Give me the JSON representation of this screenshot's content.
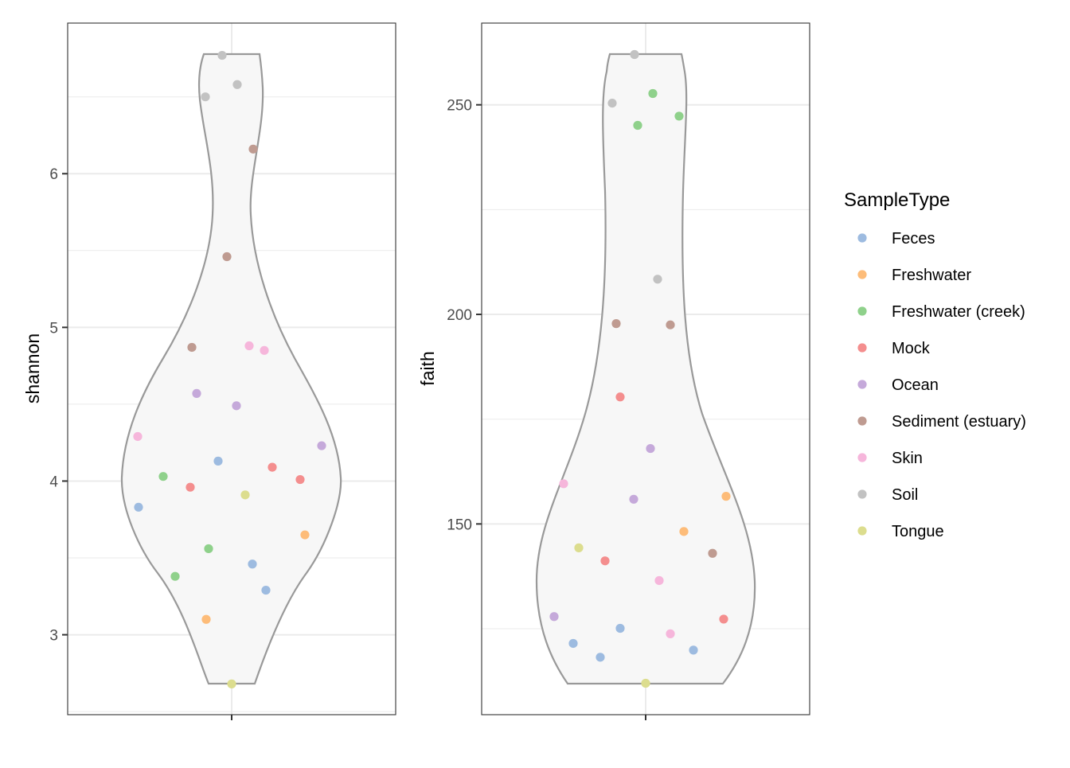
{
  "legend": {
    "title": "SampleType",
    "items": [
      {
        "label": "Feces",
        "color": "#9dbbe0"
      },
      {
        "label": "Freshwater",
        "color": "#fdbc79"
      },
      {
        "label": "Freshwater (creek)",
        "color": "#8fd18b"
      },
      {
        "label": "Mock",
        "color": "#f48e8e"
      },
      {
        "label": "Ocean",
        "color": "#c5a9da"
      },
      {
        "label": "Sediment (estuary)",
        "color": "#bf9b91"
      },
      {
        "label": "Skin",
        "color": "#f6b6db"
      },
      {
        "label": "Soil",
        "color": "#c2c2c2"
      },
      {
        "label": "Tongue",
        "color": "#dcdd8e"
      }
    ]
  },
  "chart_data": [
    {
      "type": "violin",
      "ylabel": "shannon",
      "xlabel": "",
      "ylim": [
        2.48,
        6.98
      ],
      "yticks": [
        3,
        4,
        5,
        6
      ],
      "grid": true,
      "legend_position": "right",
      "points": [
        {
          "type": "Soil",
          "y": 6.77
        },
        {
          "type": "Soil",
          "y": 6.58
        },
        {
          "type": "Soil",
          "y": 6.5
        },
        {
          "type": "Sediment (estuary)",
          "y": 6.16
        },
        {
          "type": "Sediment (estuary)",
          "y": 5.46
        },
        {
          "type": "Sediment (estuary)",
          "y": 4.87
        },
        {
          "type": "Skin",
          "y": 4.88
        },
        {
          "type": "Skin",
          "y": 4.85
        },
        {
          "type": "Ocean",
          "y": 4.57
        },
        {
          "type": "Ocean",
          "y": 4.49
        },
        {
          "type": "Skin",
          "y": 4.29
        },
        {
          "type": "Ocean",
          "y": 4.23
        },
        {
          "type": "Feces",
          "y": 4.13
        },
        {
          "type": "Mock",
          "y": 4.09
        },
        {
          "type": "Freshwater (creek)",
          "y": 4.03
        },
        {
          "type": "Mock",
          "y": 4.01
        },
        {
          "type": "Mock",
          "y": 3.96
        },
        {
          "type": "Tongue",
          "y": 3.91
        },
        {
          "type": "Feces",
          "y": 3.83
        },
        {
          "type": "Freshwater",
          "y": 3.65
        },
        {
          "type": "Freshwater (creek)",
          "y": 3.56
        },
        {
          "type": "Feces",
          "y": 3.46
        },
        {
          "type": "Freshwater (creek)",
          "y": 3.38
        },
        {
          "type": "Feces",
          "y": 3.29
        },
        {
          "type": "Freshwater",
          "y": 3.1
        },
        {
          "type": "Tongue",
          "y": 2.68
        }
      ]
    },
    {
      "type": "violin",
      "ylabel": "faith",
      "xlabel": "",
      "ylim": [
        104.5,
        269.5
      ],
      "yticks": [
        150,
        200,
        250
      ],
      "grid": true,
      "legend_position": "right",
      "points": [
        {
          "type": "Soil",
          "y": 262.0
        },
        {
          "type": "Freshwater (creek)",
          "y": 252.7
        },
        {
          "type": "Soil",
          "y": 250.4
        },
        {
          "type": "Freshwater (creek)",
          "y": 247.3
        },
        {
          "type": "Freshwater (creek)",
          "y": 245.1
        },
        {
          "type": "Soil",
          "y": 208.4
        },
        {
          "type": "Sediment (estuary)",
          "y": 197.8
        },
        {
          "type": "Sediment (estuary)",
          "y": 197.5
        },
        {
          "type": "Mock",
          "y": 180.3
        },
        {
          "type": "Ocean",
          "y": 168.0
        },
        {
          "type": "Skin",
          "y": 159.6
        },
        {
          "type": "Freshwater",
          "y": 156.6
        },
        {
          "type": "Ocean",
          "y": 155.9
        },
        {
          "type": "Freshwater",
          "y": 148.2
        },
        {
          "type": "Tongue",
          "y": 144.3
        },
        {
          "type": "Sediment (estuary)",
          "y": 143.0
        },
        {
          "type": "Mock",
          "y": 141.2
        },
        {
          "type": "Skin",
          "y": 136.5
        },
        {
          "type": "Ocean",
          "y": 127.9
        },
        {
          "type": "Mock",
          "y": 127.3
        },
        {
          "type": "Feces",
          "y": 125.1
        },
        {
          "type": "Skin",
          "y": 123.8
        },
        {
          "type": "Feces",
          "y": 121.5
        },
        {
          "type": "Feces",
          "y": 119.9
        },
        {
          "type": "Feces",
          "y": 118.2
        },
        {
          "type": "Tongue",
          "y": 112.0
        }
      ]
    }
  ]
}
